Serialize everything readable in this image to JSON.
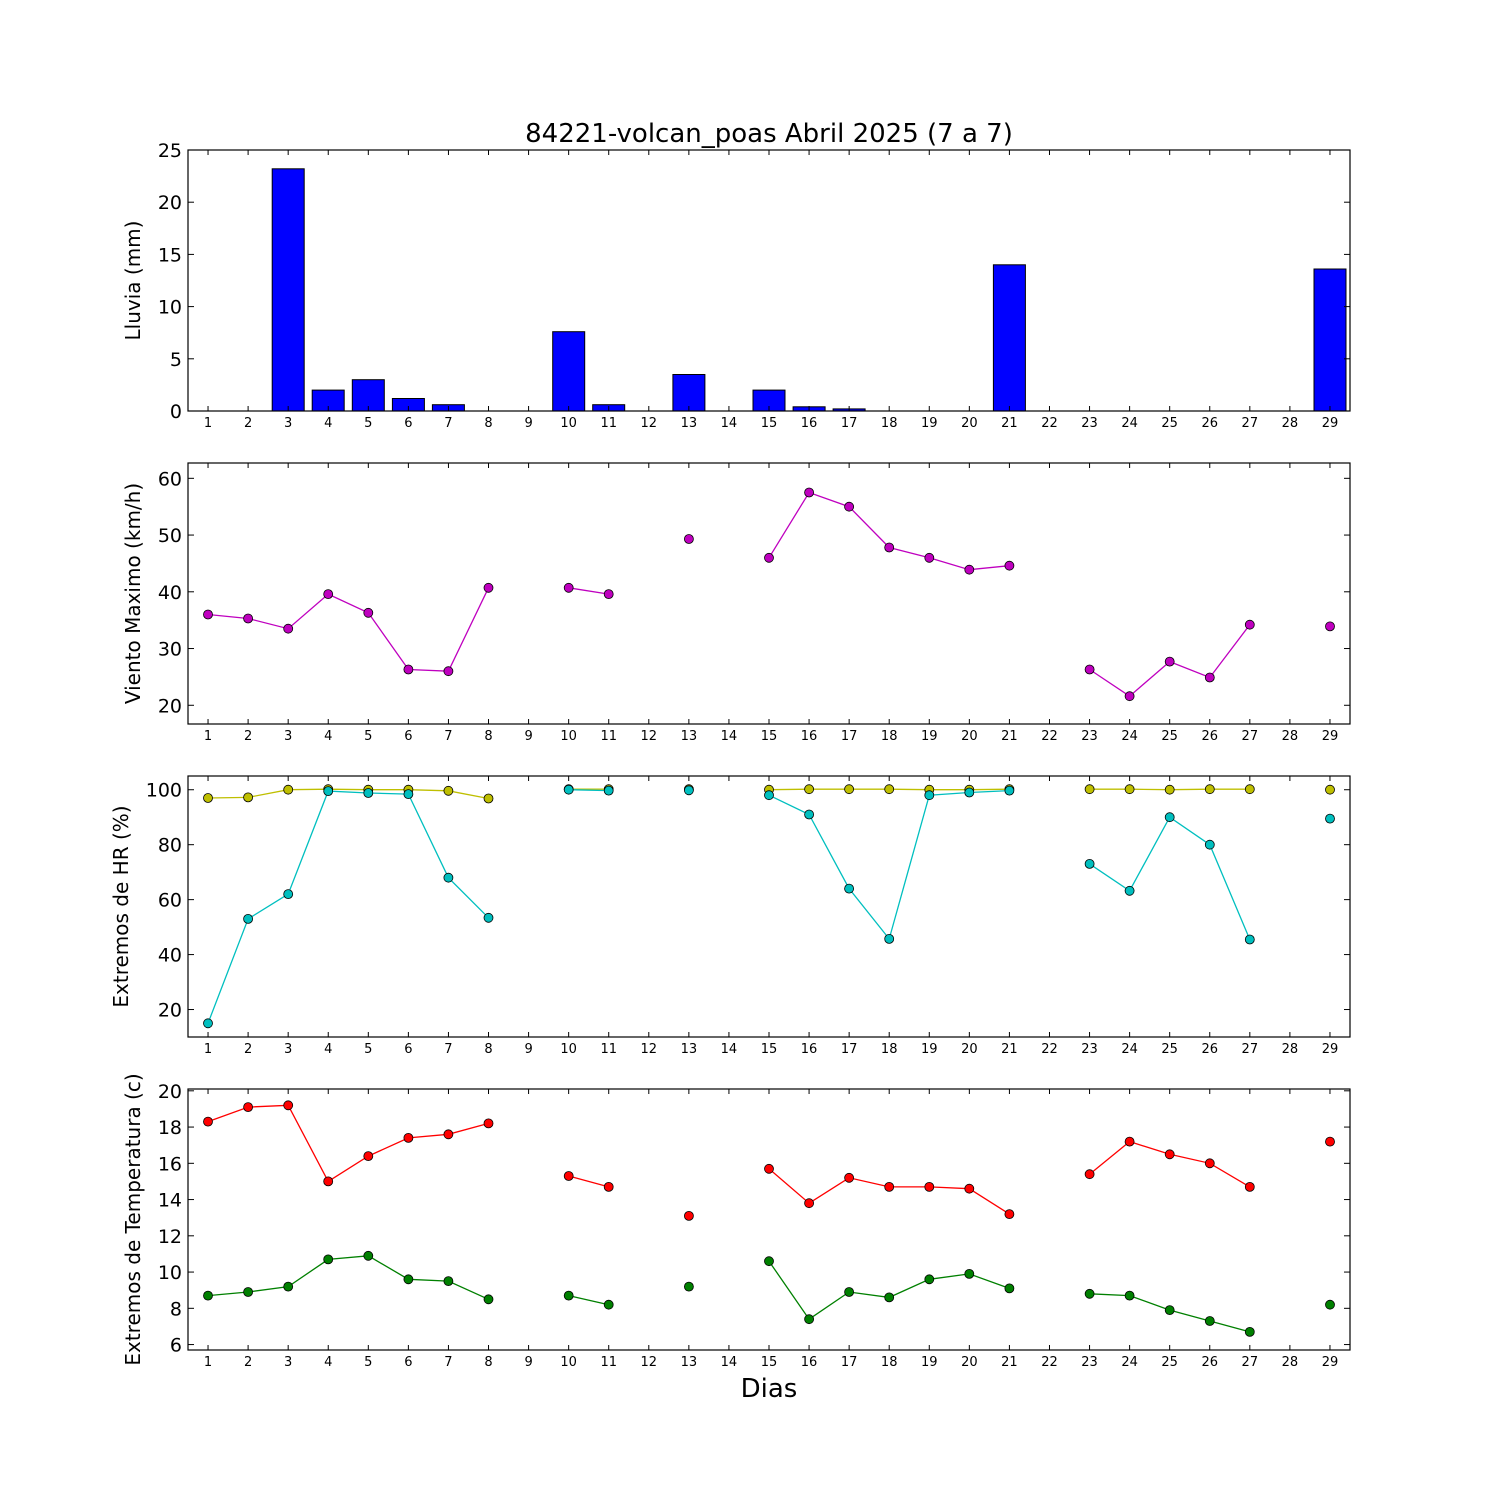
{
  "figure": {
    "title": "84221-volcan_poas Abril 2025  (7 a 7)",
    "xlabel": "Dias"
  },
  "chart_data": [
    {
      "type": "bar",
      "ylabel": "Lluvia (mm)",
      "ylim": [
        0,
        25
      ],
      "yticks": [
        0,
        5,
        10,
        15,
        20,
        25
      ],
      "xlim": [
        0.5,
        29.5
      ],
      "x": [
        1,
        2,
        3,
        4,
        5,
        6,
        7,
        8,
        9,
        10,
        11,
        12,
        13,
        14,
        15,
        16,
        17,
        18,
        19,
        20,
        21,
        22,
        23,
        24,
        25,
        26,
        27,
        28,
        29
      ],
      "series": [
        {
          "color": "#0000ff",
          "values": [
            0,
            0,
            23.2,
            2.0,
            3.0,
            1.2,
            0.6,
            0,
            0,
            7.6,
            0.6,
            0,
            3.5,
            0,
            2.0,
            0.4,
            0.2,
            0,
            0,
            0,
            14.0,
            0,
            0,
            0,
            0,
            0,
            0,
            0,
            13.6
          ]
        }
      ]
    },
    {
      "type": "line",
      "ylabel": "Viento Maximo (km/h)",
      "ylim": [
        16.7,
        62.7
      ],
      "yticks": [
        20,
        30,
        40,
        50,
        60
      ],
      "xlim": [
        0.5,
        29.5
      ],
      "x": [
        1,
        2,
        3,
        4,
        5,
        6,
        7,
        8,
        9,
        10,
        11,
        12,
        13,
        14,
        15,
        16,
        17,
        18,
        19,
        20,
        21,
        22,
        23,
        24,
        25,
        26,
        27,
        28,
        29
      ],
      "series": [
        {
          "color": "#bf00bf",
          "values": [
            36.0,
            35.3,
            33.5,
            39.6,
            36.3,
            26.3,
            26.0,
            40.7,
            null,
            40.7,
            39.6,
            null,
            49.3,
            null,
            46.0,
            57.5,
            55.0,
            47.8,
            46.0,
            43.9,
            44.6,
            null,
            26.3,
            21.6,
            27.7,
            24.9,
            34.2,
            null,
            33.9
          ]
        }
      ]
    },
    {
      "type": "line",
      "ylabel": "Extremos de HR (%)",
      "ylim": [
        10,
        105
      ],
      "yticks": [
        20,
        40,
        60,
        80,
        100
      ],
      "xlim": [
        0.5,
        29.5
      ],
      "x": [
        1,
        2,
        3,
        4,
        5,
        6,
        7,
        8,
        9,
        10,
        11,
        12,
        13,
        14,
        15,
        16,
        17,
        18,
        19,
        20,
        21,
        22,
        23,
        24,
        25,
        26,
        27,
        28,
        29
      ],
      "series": [
        {
          "color": "#bfbf00",
          "values": [
            97,
            97.2,
            100,
            100.2,
            100,
            100,
            99.6,
            96.8,
            null,
            100.2,
            100.2,
            null,
            100.2,
            null,
            100,
            100.2,
            100.2,
            100.2,
            100,
            100,
            100.2,
            null,
            100.2,
            100.2,
            100,
            100.2,
            100.2,
            null,
            100
          ]
        },
        {
          "color": "#00bfbf",
          "values": [
            15,
            53,
            62,
            99.5,
            98.8,
            98.4,
            68,
            53.4,
            null,
            100,
            99.7,
            null,
            99.8,
            null,
            98,
            91,
            64,
            45.7,
            98,
            99,
            99.7,
            null,
            73,
            63.2,
            90,
            80,
            45.5,
            null,
            89.5
          ]
        }
      ]
    },
    {
      "type": "line",
      "ylabel": "Extremos de Temperatura (c)",
      "ylim": [
        5.7,
        20.1
      ],
      "yticks": [
        6,
        8,
        10,
        12,
        14,
        16,
        18,
        20
      ],
      "xlim": [
        0.5,
        29.5
      ],
      "x": [
        1,
        2,
        3,
        4,
        5,
        6,
        7,
        8,
        9,
        10,
        11,
        12,
        13,
        14,
        15,
        16,
        17,
        18,
        19,
        20,
        21,
        22,
        23,
        24,
        25,
        26,
        27,
        28,
        29
      ],
      "series": [
        {
          "color": "#ff0000",
          "values": [
            18.3,
            19.1,
            19.2,
            15.0,
            16.4,
            17.4,
            17.6,
            18.2,
            null,
            15.3,
            14.7,
            null,
            13.1,
            null,
            15.7,
            13.8,
            15.2,
            14.7,
            14.7,
            14.6,
            13.2,
            null,
            15.4,
            17.2,
            16.5,
            16.0,
            14.7,
            null,
            17.2
          ]
        },
        {
          "color": "#008000",
          "values": [
            8.7,
            8.9,
            9.2,
            10.7,
            10.9,
            9.6,
            9.5,
            8.5,
            null,
            8.7,
            8.2,
            null,
            9.2,
            null,
            10.6,
            7.4,
            8.9,
            8.6,
            9.6,
            9.9,
            9.1,
            null,
            8.8,
            8.7,
            7.9,
            7.3,
            6.7,
            null,
            8.2
          ]
        }
      ]
    }
  ]
}
